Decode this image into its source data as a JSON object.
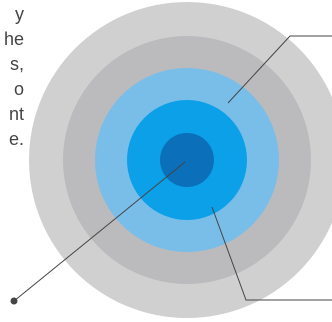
{
  "text_fragments": [
    "y",
    "he",
    "s,",
    "o",
    "nt",
    "e."
  ],
  "colors": {
    "outer_ring": "#d0d0d0",
    "second_ring": "#bbbbbd",
    "third_ring": "#79bde9",
    "fourth_ring": "#0ca0e8",
    "core": "#0b6fba",
    "leader_line": "#444444",
    "text": "#444444"
  }
}
